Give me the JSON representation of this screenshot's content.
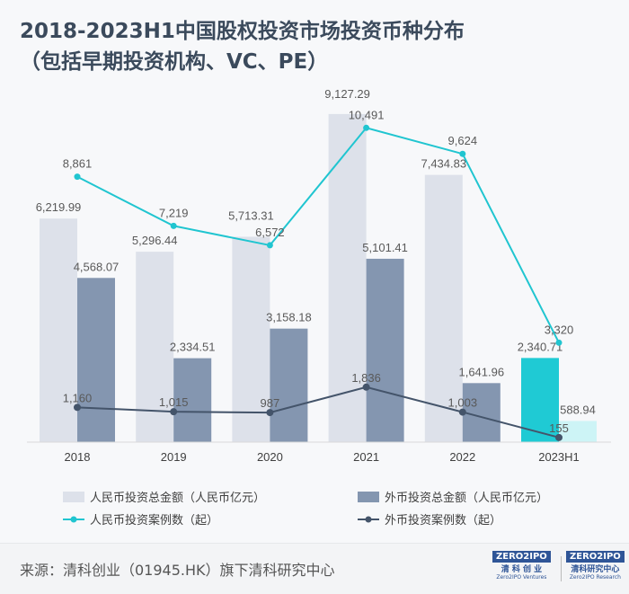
{
  "title_line1": "2018-2023H1中国股权投资市场投资币种分布",
  "title_line2": "（包括早期投资机构、VC、PE）",
  "chart_data": {
    "type": "bar+line",
    "categories": [
      "2018",
      "2019",
      "2020",
      "2021",
      "2022",
      "2023H1"
    ],
    "series": [
      {
        "name": "人民币投资总金额（人民币亿元）",
        "type": "bar",
        "values": [
          6219.99,
          5296.44,
          5713.31,
          9127.29,
          7434.83,
          2340.71
        ],
        "labels": [
          "6,219.99",
          "5,296.44",
          "5,713.31",
          "9,127.29",
          "7,434.83",
          "2,340.71"
        ],
        "color": "#dde1ea",
        "highlight_color": "#1fcad4"
      },
      {
        "name": "外币投资总金额（人民币亿元）",
        "type": "bar",
        "values": [
          4568.07,
          2334.51,
          3158.18,
          5101.41,
          1641.96,
          588.94
        ],
        "labels": [
          "4,568.07",
          "2,334.51",
          "3,158.18",
          "5,101.41",
          "1,641.96",
          "588.94"
        ],
        "color": "#8496b0",
        "highlight_color": "#cdf4f6"
      },
      {
        "name": "人民币投资案例数（起）",
        "type": "line",
        "values": [
          8861,
          7219,
          6572,
          10491,
          9624,
          3320
        ],
        "labels": [
          "8,861",
          "7,219",
          "6,572",
          "10,491",
          "9,624",
          "3,320"
        ],
        "color": "#20c5d0"
      },
      {
        "name": "外币投资案例数（起）",
        "type": "line",
        "values": [
          1160,
          1015,
          987,
          1836,
          1003,
          155
        ],
        "labels": [
          "1,160",
          "1,015",
          "987",
          "1,836",
          "1,003",
          "155"
        ],
        "color": "#44546a"
      }
    ],
    "highlight_category": "2023H1",
    "bar_ylim": [
      0,
      10000
    ],
    "line_ylim": [
      0,
      12000
    ],
    "grid": false,
    "legend_placement": "bottom"
  },
  "footer": {
    "source": "来源：清科创业（01945.HK）旗下清科研究中心",
    "logo1": {
      "mark": "ZERO2IPO",
      "cn": "清 科 创 业",
      "en": "Zero2IPO Ventures"
    },
    "logo2": {
      "mark": "ZERO2IPO",
      "cn": "清科研究中心",
      "en": "Zero2IPO Research"
    }
  }
}
